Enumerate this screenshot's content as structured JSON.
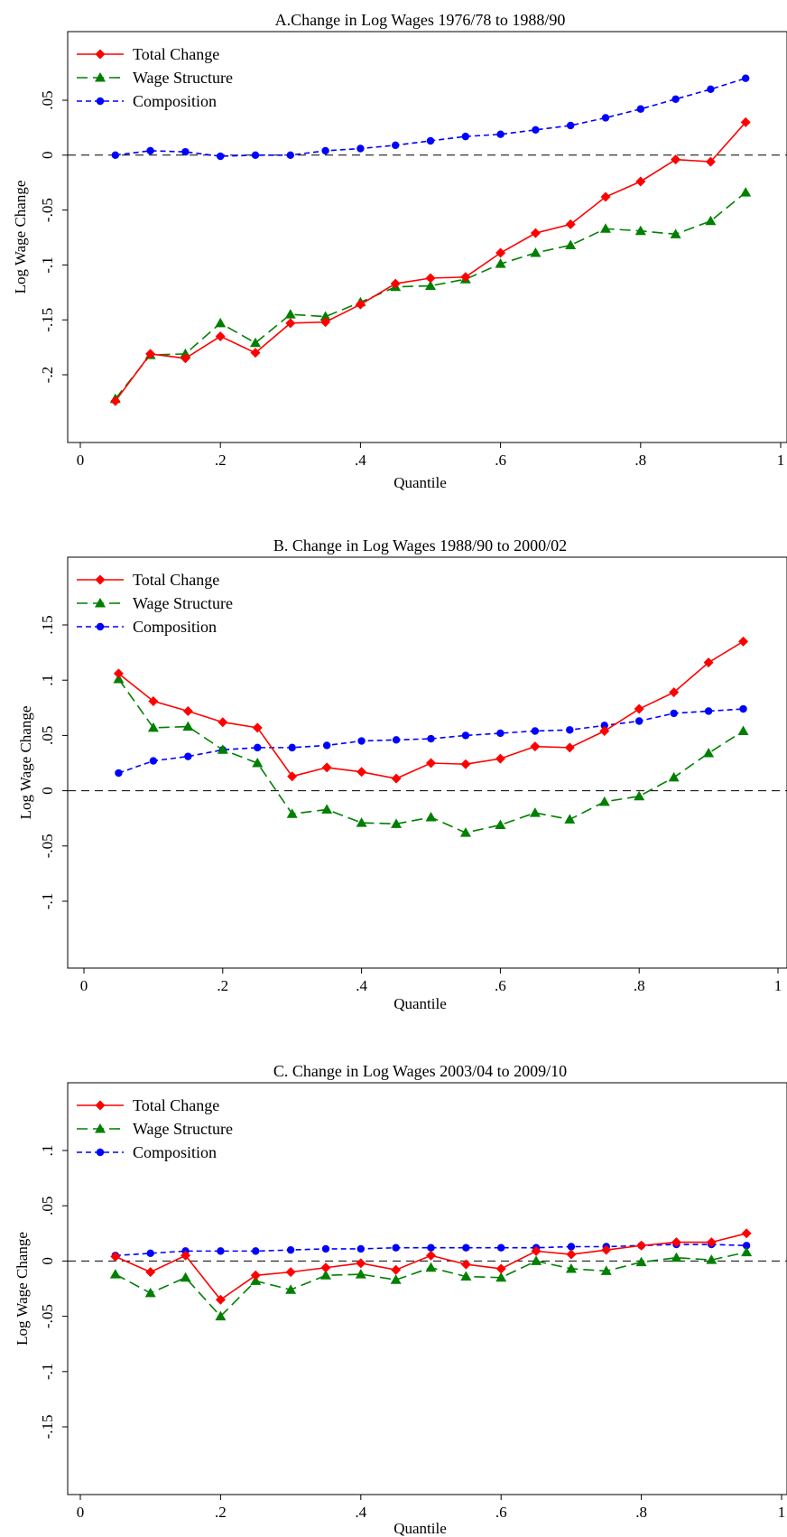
{
  "legend_labels": [
    "Total Change",
    "Wage Structure",
    "Composition"
  ],
  "colors": {
    "total": "#ff0000",
    "wage": "#008000",
    "composition": "#0000ff"
  },
  "chart_data": [
    {
      "type": "line",
      "title": "A.Change in Log Wages 1976/78 to 1988/90",
      "xlabel": "Quantile",
      "ylabel": "Log Wage Change",
      "xlim": [
        0,
        1
      ],
      "ylim": [
        -0.265,
        0.105
      ],
      "xticks": [
        "0",
        ".2",
        ".4",
        ".6",
        ".8",
        "1"
      ],
      "yticks": [
        ".05",
        "0",
        "-.05",
        "-.1",
        "-.15",
        "-.2"
      ],
      "x": [
        0.05,
        0.1,
        0.15,
        0.2,
        0.25,
        0.3,
        0.35,
        0.4,
        0.45,
        0.5,
        0.55,
        0.6,
        0.65,
        0.7,
        0.75,
        0.8,
        0.85,
        0.9,
        0.95
      ],
      "series": [
        {
          "name": "Total Change",
          "values": [
            -0.224,
            -0.181,
            -0.185,
            -0.165,
            -0.18,
            -0.153,
            -0.152,
            -0.136,
            -0.117,
            -0.112,
            -0.111,
            -0.089,
            -0.071,
            -0.063,
            -0.038,
            -0.024,
            -0.004,
            -0.006,
            0.03
          ]
        },
        {
          "name": "Wage Structure",
          "values": [
            -0.222,
            -0.182,
            -0.181,
            -0.153,
            -0.171,
            -0.145,
            -0.147,
            -0.134,
            -0.12,
            -0.119,
            -0.113,
            -0.099,
            -0.089,
            -0.082,
            -0.067,
            -0.069,
            -0.072,
            -0.06,
            -0.034
          ]
        },
        {
          "name": "Composition",
          "values": [
            0.0,
            0.004,
            0.003,
            -0.001,
            0.0,
            0.0,
            0.004,
            0.006,
            0.009,
            0.013,
            0.017,
            0.019,
            0.023,
            0.027,
            0.034,
            0.042,
            0.051,
            0.06,
            0.07
          ]
        }
      ]
    },
    {
      "type": "line",
      "title": "B. Change in Log Wages 1988/90 to 2000/02",
      "xlabel": "Quantile",
      "ylabel": "Log Wage Change",
      "xlim": [
        0,
        1
      ],
      "ylim": [
        -0.16,
        0.213
      ],
      "xticks": [
        "0",
        ".2",
        ".4",
        ".6",
        ".8",
        "1"
      ],
      "yticks": [
        ".15",
        ".1",
        ".05",
        "0",
        "-.05",
        "-.1"
      ],
      "x": [
        0.05,
        0.1,
        0.15,
        0.2,
        0.25,
        0.3,
        0.35,
        0.4,
        0.45,
        0.5,
        0.55,
        0.6,
        0.65,
        0.7,
        0.75,
        0.8,
        0.85,
        0.9,
        0.95
      ],
      "series": [
        {
          "name": "Total Change",
          "values": [
            0.106,
            0.081,
            0.072,
            0.062,
            0.057,
            0.013,
            0.021,
            0.017,
            0.011,
            0.025,
            0.024,
            0.029,
            0.04,
            0.039,
            0.054,
            0.074,
            0.089,
            0.116,
            0.135
          ]
        },
        {
          "name": "Wage Structure",
          "values": [
            0.101,
            0.057,
            0.058,
            0.037,
            0.025,
            -0.021,
            -0.017,
            -0.029,
            -0.03,
            -0.024,
            -0.038,
            -0.031,
            -0.02,
            -0.026,
            -0.01,
            -0.005,
            0.012,
            0.034,
            0.054
          ]
        },
        {
          "name": "Composition",
          "values": [
            0.016,
            0.027,
            0.031,
            0.037,
            0.039,
            0.039,
            0.041,
            0.045,
            0.046,
            0.047,
            0.05,
            0.052,
            0.054,
            0.055,
            0.059,
            0.063,
            0.07,
            0.072,
            0.074
          ]
        }
      ]
    },
    {
      "type": "line",
      "title": "C. Change in Log Wages 2003/04 to 2009/10",
      "xlabel": "Quantile",
      "ylabel": "Log Wage Change",
      "xlim": [
        0,
        1
      ],
      "ylim": [
        -0.215,
        0.155
      ],
      "xticks": [
        "0",
        ".2",
        ".4",
        ".6",
        ".8",
        "1"
      ],
      "yticks": [
        ".1",
        ".05",
        "0",
        "-.05",
        "-.1",
        "-.15"
      ],
      "x": [
        0.05,
        0.1,
        0.15,
        0.2,
        0.25,
        0.3,
        0.35,
        0.4,
        0.45,
        0.5,
        0.55,
        0.6,
        0.65,
        0.7,
        0.75,
        0.8,
        0.85,
        0.9,
        0.95
      ],
      "series": [
        {
          "name": "Total Change",
          "values": [
            0.004,
            -0.01,
            0.005,
            -0.035,
            -0.013,
            -0.01,
            -0.006,
            -0.002,
            -0.008,
            0.005,
            -0.003,
            -0.007,
            0.009,
            0.006,
            0.01,
            0.014,
            0.017,
            0.017,
            0.025
          ]
        },
        {
          "name": "Wage Structure",
          "values": [
            -0.012,
            -0.029,
            -0.015,
            -0.05,
            -0.018,
            -0.026,
            -0.013,
            -0.012,
            -0.017,
            -0.006,
            -0.014,
            -0.015,
            0.0,
            -0.007,
            -0.009,
            -0.001,
            0.003,
            0.001,
            0.008
          ]
        },
        {
          "name": "Composition",
          "values": [
            0.005,
            0.007,
            0.009,
            0.009,
            0.009,
            0.01,
            0.011,
            0.011,
            0.012,
            0.012,
            0.012,
            0.012,
            0.012,
            0.013,
            0.013,
            0.014,
            0.015,
            0.015,
            0.014
          ]
        }
      ]
    }
  ]
}
